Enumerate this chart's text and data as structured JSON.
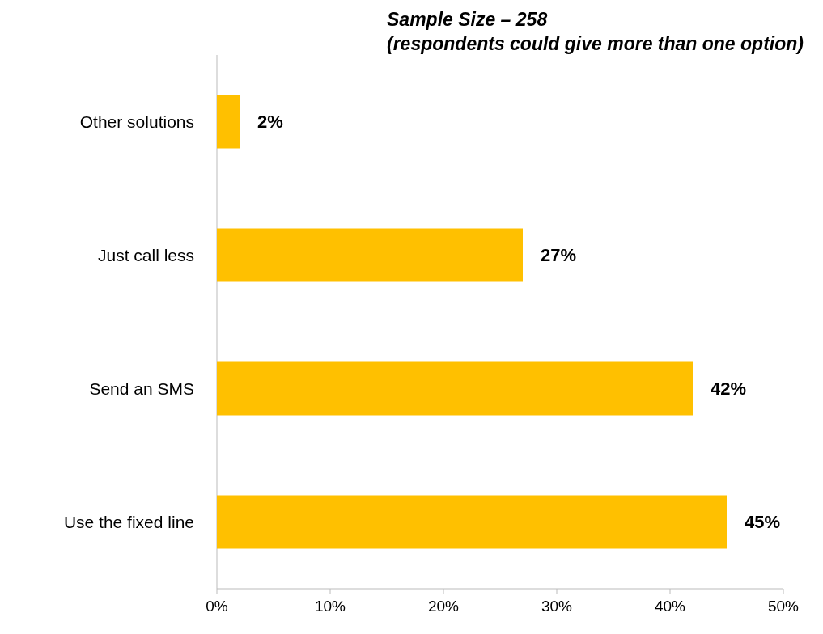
{
  "chart_data": {
    "type": "bar",
    "orientation": "horizontal",
    "categories": [
      "Other solutions",
      "Just call less",
      "Send an SMS",
      "Use the fixed line"
    ],
    "values": [
      2,
      27,
      42,
      45
    ],
    "color": "#ffc000",
    "value_labels": [
      "2%",
      "27%",
      "42%",
      "45%"
    ],
    "xlim": [
      0,
      50
    ],
    "xticks": [
      {
        "value": 0,
        "label": "0%"
      },
      {
        "value": 10,
        "label": "10%"
      },
      {
        "value": 20,
        "label": "20%"
      },
      {
        "value": 30,
        "label": "30%"
      },
      {
        "value": 40,
        "label": "40%"
      },
      {
        "value": 50,
        "label": "50%"
      }
    ],
    "annotations": [
      "Sample Size – 258",
      "(respondents could give more than one option)"
    ],
    "grid": false
  }
}
